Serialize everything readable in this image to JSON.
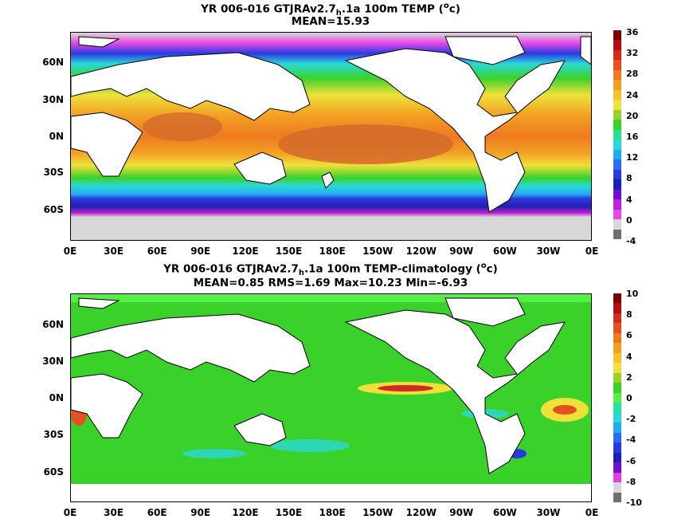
{
  "panel1": {
    "title_pre": "YR 006-016 GTJRAv2.7",
    "title_sub": "h",
    "title_post": ".1a 100m TEMP (",
    "title_sup": "o",
    "title_end": "c)",
    "stats": "MEAN=15.93",
    "colorbar": {
      "labels": [
        "36",
        "32",
        "28",
        "24",
        "20",
        "16",
        "12",
        "8",
        "4",
        "0",
        "-4"
      ],
      "colors": [
        "#7a0000",
        "#b01010",
        "#d42a1e",
        "#e6501e",
        "#ee7a20",
        "#f2a024",
        "#f5c42a",
        "#f0e03a",
        "#9ad02a",
        "#3ad22a",
        "#2ae08a",
        "#2ad8d8",
        "#26a8f0",
        "#2670f0",
        "#2a3ae0",
        "#2020b0",
        "#7010d0",
        "#c020d8",
        "#e848e8",
        "#d8d8d8",
        "#707070"
      ]
    }
  },
  "panel2": {
    "title_pre": "YR 006-016 GTJRAv2.7",
    "title_sub": "h",
    "title_post": ".1a 100m TEMP-climatology (",
    "title_sup": "o",
    "title_end": "c)",
    "stats": "MEAN=0.85  RMS=1.69  Max=10.23  Min=-6.93",
    "colorbar": {
      "labels": [
        "10",
        "8",
        "6",
        "4",
        "2",
        "0",
        "-2",
        "-4",
        "-6",
        "-8",
        "-10"
      ],
      "colors": [
        "#7a0000",
        "#b01010",
        "#d42a1e",
        "#e6501e",
        "#ee7a20",
        "#f2a024",
        "#f5c42a",
        "#f0e03a",
        "#9ad02a",
        "#3ad22a",
        "#58ee48",
        "#2ae0a0",
        "#2ad8d8",
        "#26a8f0",
        "#2670f0",
        "#2a3ae0",
        "#2020b0",
        "#7010d0",
        "#e040e0",
        "#d8d8d8",
        "#707070"
      ]
    }
  },
  "x_ticks": [
    "0E",
    "30E",
    "60E",
    "90E",
    "120E",
    "150E",
    "180E",
    "150W",
    "120W",
    "90W",
    "60W",
    "30W",
    "0E"
  ],
  "y_ticks": [
    "60N",
    "30N",
    "0N",
    "30S",
    "60S"
  ]
}
